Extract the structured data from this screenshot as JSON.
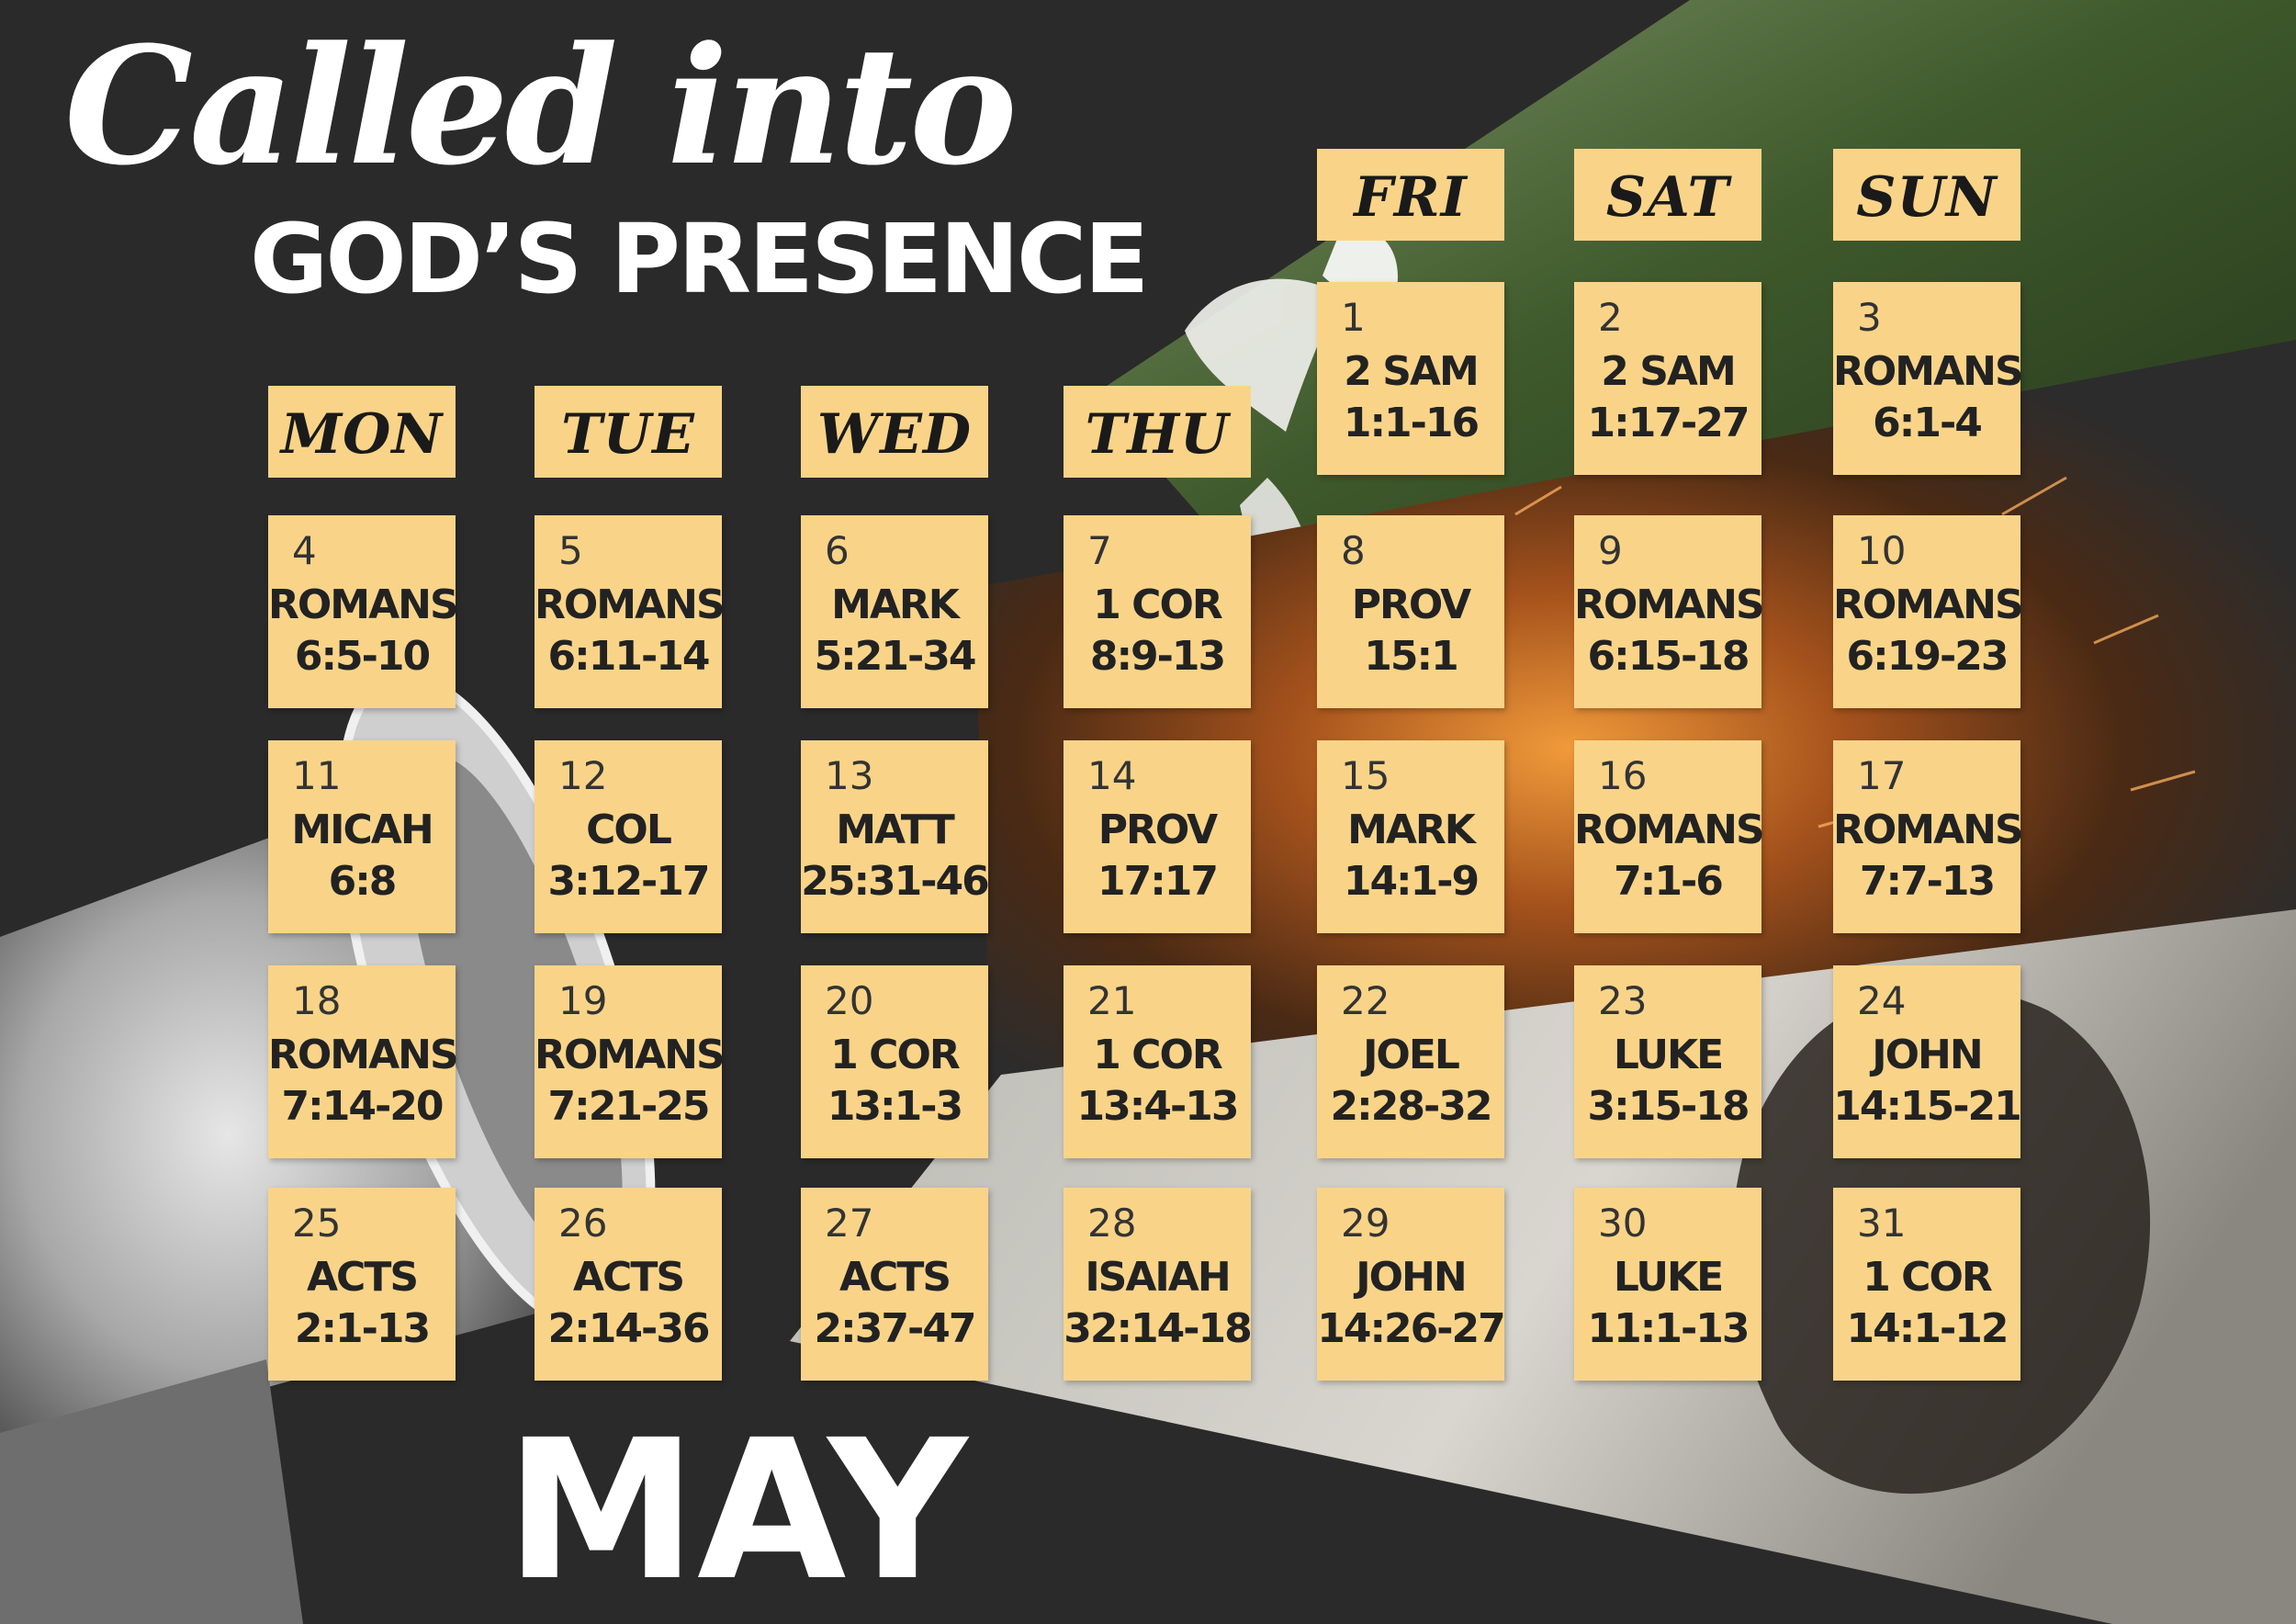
{
  "title": {
    "line1": "Called into",
    "line2": "GOD’S PRESENCE"
  },
  "month": "MAY",
  "colors": {
    "card": "#f9d488",
    "background": "#2a2a2a",
    "text": "#ffffff"
  },
  "decor": [
    "megaphone-image",
    "dove-image",
    "fire-sparks-image",
    "crowned-figure-image"
  ],
  "weekdays": [
    "MON",
    "TUE",
    "WED",
    "THU",
    "FRI",
    "SAT",
    "SUN"
  ],
  "days": [
    {
      "num": "1",
      "book": "2 SAM",
      "verse": "1:1-16"
    },
    {
      "num": "2",
      "book": "2 SAM",
      "verse": "1:17-27"
    },
    {
      "num": "3",
      "book": "ROMANS",
      "verse": "6:1-4"
    },
    {
      "num": "4",
      "book": "ROMANS",
      "verse": "6:5-10"
    },
    {
      "num": "5",
      "book": "ROMANS",
      "verse": "6:11-14"
    },
    {
      "num": "6",
      "book": "MARK",
      "verse": "5:21-34"
    },
    {
      "num": "7",
      "book": "1 COR",
      "verse": "8:9-13"
    },
    {
      "num": "8",
      "book": "PROV",
      "verse": "15:1"
    },
    {
      "num": "9",
      "book": "ROMANS",
      "verse": "6:15-18"
    },
    {
      "num": "10",
      "book": "ROMANS",
      "verse": "6:19-23"
    },
    {
      "num": "11",
      "book": "MICAH",
      "verse": "6:8"
    },
    {
      "num": "12",
      "book": "COL",
      "verse": "3:12-17"
    },
    {
      "num": "13",
      "book": "MATT",
      "verse": "25:31-46"
    },
    {
      "num": "14",
      "book": "PROV",
      "verse": "17:17"
    },
    {
      "num": "15",
      "book": "MARK",
      "verse": "14:1-9"
    },
    {
      "num": "16",
      "book": "ROMANS",
      "verse": "7:1-6"
    },
    {
      "num": "17",
      "book": "ROMANS",
      "verse": "7:7-13"
    },
    {
      "num": "18",
      "book": "ROMANS",
      "verse": "7:14-20"
    },
    {
      "num": "19",
      "book": "ROMANS",
      "verse": "7:21-25"
    },
    {
      "num": "20",
      "book": "1 COR",
      "verse": "13:1-3"
    },
    {
      "num": "21",
      "book": "1 COR",
      "verse": "13:4-13"
    },
    {
      "num": "22",
      "book": "JOEL",
      "verse": "2:28-32"
    },
    {
      "num": "23",
      "book": "LUKE",
      "verse": "3:15-18"
    },
    {
      "num": "24",
      "book": "JOHN",
      "verse": "14:15-21"
    },
    {
      "num": "25",
      "book": "ACTS",
      "verse": "2:1-13"
    },
    {
      "num": "26",
      "book": "ACTS",
      "verse": "2:14-36"
    },
    {
      "num": "27",
      "book": "ACTS",
      "verse": "2:37-47"
    },
    {
      "num": "28",
      "book": "ISAIAH",
      "verse": "32:14-18"
    },
    {
      "num": "29",
      "book": "JOHN",
      "verse": "14:26-27"
    },
    {
      "num": "30",
      "book": "LUKE",
      "verse": "11:1-13"
    },
    {
      "num": "31",
      "book": "1 COR",
      "verse": "14:1-12"
    }
  ]
}
